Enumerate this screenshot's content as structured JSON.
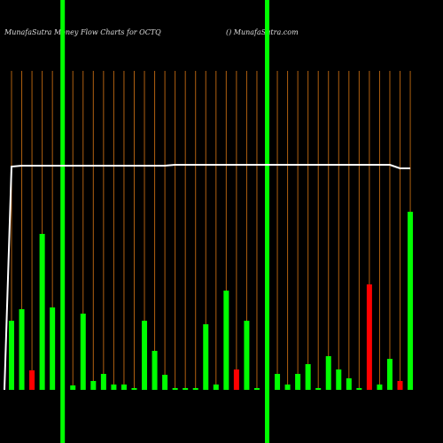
{
  "chart_data": {
    "type": "bar",
    "title": "MunafaSutra Money Flow Charts for OCTQ",
    "subtitle": "() MunafaSutra.com",
    "categories": [
      null,
      null,
      null,
      null,
      null,
      null,
      null,
      null,
      null,
      null,
      null,
      null,
      null,
      null,
      null,
      null,
      null,
      null,
      null,
      null,
      null,
      null,
      null,
      null,
      null,
      null,
      null,
      null,
      null,
      null,
      null,
      null,
      null,
      null,
      null,
      null,
      null,
      null,
      null,
      null
    ],
    "values": [
      78,
      91,
      22,
      176,
      93,
      0,
      5,
      86,
      10,
      18,
      6,
      6,
      2,
      78,
      44,
      17,
      2,
      2,
      2,
      74,
      6,
      112,
      23,
      78,
      2,
      0,
      18,
      6,
      18,
      29,
      2,
      38,
      23,
      13,
      2,
      119,
      6,
      35,
      10,
      201
    ],
    "colors": [
      "#00ff00",
      "#00ff00",
      "#ff0000",
      "#00ff00",
      "#00ff00",
      "#00ff00",
      "#00ff00",
      "#00ff00",
      "#00ff00",
      "#00ff00",
      "#00ff00",
      "#00ff00",
      "#00ff00",
      "#00ff00",
      "#00ff00",
      "#00ff00",
      "#00ff00",
      "#00ff00",
      "#00ff00",
      "#00ff00",
      "#00ff00",
      "#00ff00",
      "#ff0000",
      "#00ff00",
      "#00ff00",
      "#00ff00",
      "#00ff00",
      "#00ff00",
      "#00ff00",
      "#00ff00",
      "#00ff00",
      "#00ff00",
      "#00ff00",
      "#00ff00",
      "#00ff00",
      "#ff0000",
      "#00ff00",
      "#00ff00",
      "#ff0000",
      "#00ff00"
    ],
    "line": {
      "color": "#ffffff",
      "values": [
        252,
        253,
        253,
        253,
        253,
        253,
        253,
        253,
        253,
        253,
        253,
        253,
        253,
        253,
        253,
        253,
        254,
        254,
        254,
        254,
        254,
        254,
        254,
        254,
        254,
        254,
        254,
        254,
        254,
        254,
        254,
        254,
        254,
        254,
        254,
        254,
        254,
        254,
        250,
        250
      ]
    },
    "highlights": [
      5,
      25
    ],
    "highlight_color": "#00ff00",
    "grid_color": "#b06010",
    "ylim": [
      0,
      360
    ]
  }
}
